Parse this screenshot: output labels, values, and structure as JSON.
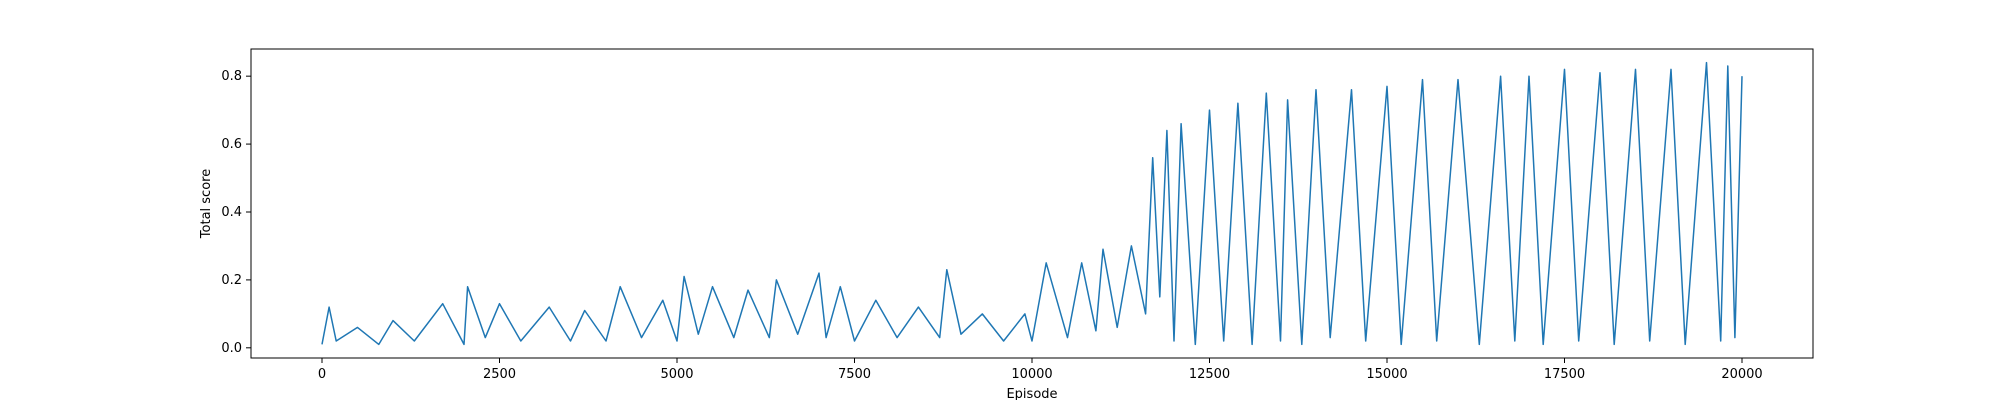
{
  "chart_data": {
    "type": "line",
    "title": "",
    "xlabel": "Episode",
    "ylabel": "Total score",
    "xlim": [
      -1000,
      21000
    ],
    "ylim": [
      -0.03,
      0.88
    ],
    "xticks": [
      0,
      2500,
      5000,
      7500,
      10000,
      12500,
      15000,
      17500,
      20000
    ],
    "yticks": [
      0.0,
      0.2,
      0.4,
      0.6,
      0.8
    ],
    "xtick_labels": [
      "0",
      "2500",
      "5000",
      "7500",
      "10000",
      "12500",
      "15000",
      "17500",
      "20000"
    ],
    "ytick_labels": [
      "0.0",
      "0.2",
      "0.4",
      "0.6",
      "0.8"
    ],
    "grid": false,
    "legend": "none",
    "series": [
      {
        "color": "#1f77b4",
        "points": [
          [
            0,
            0.01
          ],
          [
            100,
            0.12
          ],
          [
            200,
            0.02
          ],
          [
            500,
            0.06
          ],
          [
            800,
            0.01
          ],
          [
            1000,
            0.08
          ],
          [
            1300,
            0.02
          ],
          [
            1700,
            0.13
          ],
          [
            2000,
            0.01
          ],
          [
            2050,
            0.18
          ],
          [
            2300,
            0.03
          ],
          [
            2500,
            0.13
          ],
          [
            2800,
            0.02
          ],
          [
            3200,
            0.12
          ],
          [
            3500,
            0.02
          ],
          [
            3700,
            0.11
          ],
          [
            4000,
            0.02
          ],
          [
            4200,
            0.18
          ],
          [
            4500,
            0.03
          ],
          [
            4800,
            0.14
          ],
          [
            5000,
            0.02
          ],
          [
            5100,
            0.21
          ],
          [
            5300,
            0.04
          ],
          [
            5500,
            0.18
          ],
          [
            5800,
            0.03
          ],
          [
            6000,
            0.17
          ],
          [
            6300,
            0.03
          ],
          [
            6400,
            0.2
          ],
          [
            6700,
            0.04
          ],
          [
            7000,
            0.22
          ],
          [
            7100,
            0.03
          ],
          [
            7300,
            0.18
          ],
          [
            7500,
            0.02
          ],
          [
            7800,
            0.14
          ],
          [
            8100,
            0.03
          ],
          [
            8400,
            0.12
          ],
          [
            8700,
            0.03
          ],
          [
            8800,
            0.23
          ],
          [
            9000,
            0.04
          ],
          [
            9300,
            0.1
          ],
          [
            9600,
            0.02
          ],
          [
            9900,
            0.1
          ],
          [
            10000,
            0.02
          ],
          [
            10200,
            0.25
          ],
          [
            10500,
            0.03
          ],
          [
            10700,
            0.25
          ],
          [
            10900,
            0.05
          ],
          [
            11000,
            0.29
          ],
          [
            11200,
            0.06
          ],
          [
            11400,
            0.3
          ],
          [
            11600,
            0.1
          ],
          [
            11700,
            0.56
          ],
          [
            11800,
            0.15
          ],
          [
            11900,
            0.64
          ],
          [
            12000,
            0.02
          ],
          [
            12100,
            0.66
          ],
          [
            12300,
            0.01
          ],
          [
            12500,
            0.7
          ],
          [
            12700,
            0.02
          ],
          [
            12900,
            0.72
          ],
          [
            13100,
            0.01
          ],
          [
            13300,
            0.75
          ],
          [
            13500,
            0.02
          ],
          [
            13600,
            0.73
          ],
          [
            13800,
            0.01
          ],
          [
            14000,
            0.76
          ],
          [
            14200,
            0.03
          ],
          [
            14500,
            0.76
          ],
          [
            14700,
            0.02
          ],
          [
            15000,
            0.77
          ],
          [
            15200,
            0.01
          ],
          [
            15500,
            0.79
          ],
          [
            15700,
            0.02
          ],
          [
            16000,
            0.79
          ],
          [
            16300,
            0.01
          ],
          [
            16600,
            0.8
          ],
          [
            16800,
            0.02
          ],
          [
            17000,
            0.8
          ],
          [
            17200,
            0.01
          ],
          [
            17500,
            0.82
          ],
          [
            17700,
            0.02
          ],
          [
            18000,
            0.81
          ],
          [
            18200,
            0.01
          ],
          [
            18500,
            0.82
          ],
          [
            18700,
            0.02
          ],
          [
            19000,
            0.82
          ],
          [
            19200,
            0.01
          ],
          [
            19500,
            0.84
          ],
          [
            19700,
            0.02
          ],
          [
            19800,
            0.83
          ],
          [
            19900,
            0.03
          ],
          [
            20000,
            0.8
          ]
        ]
      }
    ]
  }
}
